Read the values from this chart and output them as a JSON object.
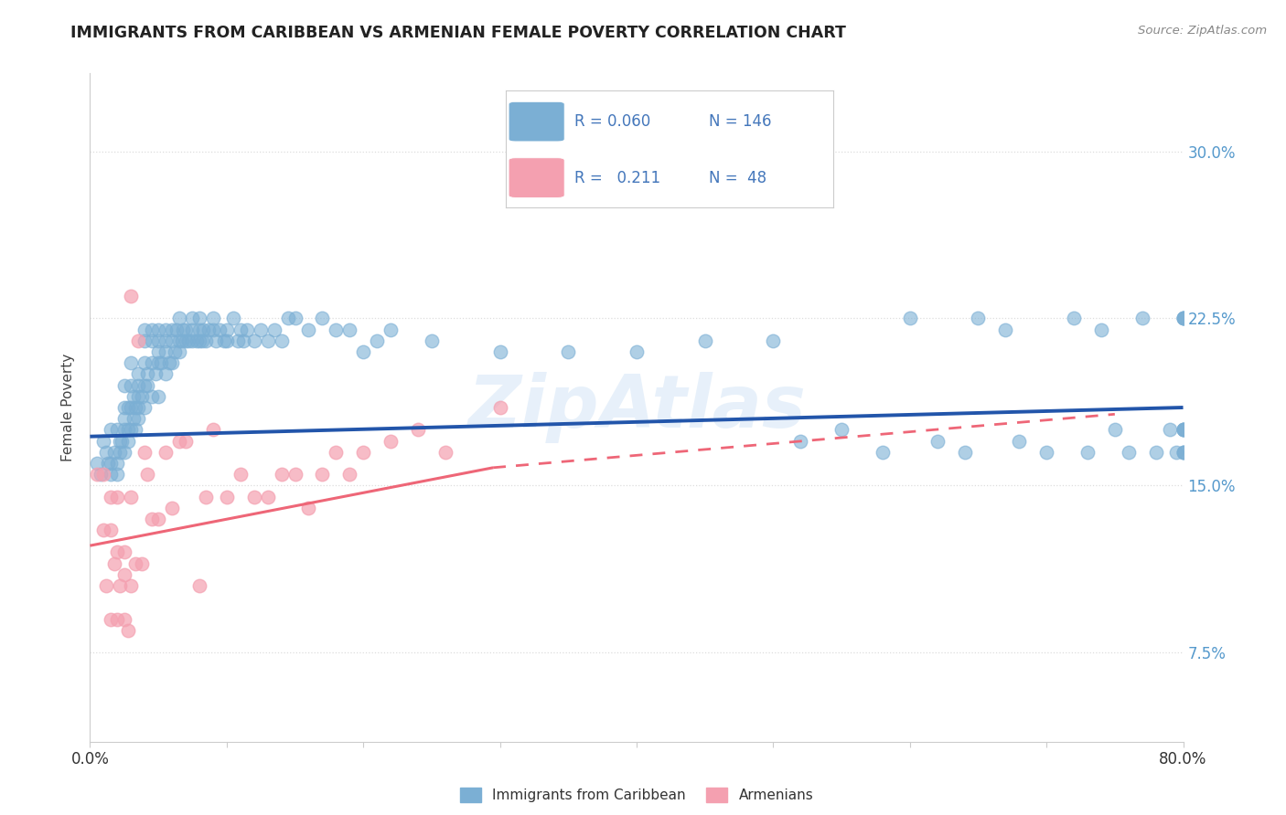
{
  "title": "IMMIGRANTS FROM CARIBBEAN VS ARMENIAN FEMALE POVERTY CORRELATION CHART",
  "source": "Source: ZipAtlas.com",
  "ylabel": "Female Poverty",
  "yticks": [
    0.075,
    0.15,
    0.225,
    0.3
  ],
  "ytick_labels": [
    "7.5%",
    "15.0%",
    "22.5%",
    "30.0%"
  ],
  "xlim": [
    0.0,
    0.8
  ],
  "ylim": [
    0.035,
    0.335
  ],
  "caribbean_R": 0.06,
  "caribbean_N": 146,
  "armenian_R": 0.211,
  "armenian_N": 48,
  "caribbean_color": "#7BAFD4",
  "armenian_color": "#F4A0B0",
  "caribbean_line_color": "#2255AA",
  "armenian_line_color": "#EE6677",
  "background_color": "#FFFFFF",
  "watermark": "ZipAtlas",
  "title_fontsize": 12.5,
  "axis_label_color": "#5599CC",
  "legend_text_color": "#4477BB",
  "grid_color": "#DDDDDD",
  "carib_line_x0": 0.0,
  "carib_line_x1": 0.8,
  "carib_line_y0": 0.172,
  "carib_line_y1": 0.185,
  "arm_line_x_solid_start": 0.0,
  "arm_line_x_solid_end": 0.295,
  "arm_line_x_dash_end": 0.75,
  "arm_line_y0": 0.123,
  "arm_line_y1_solid": 0.158,
  "arm_line_y1_dash": 0.182,
  "caribbean_x": [
    0.005,
    0.008,
    0.01,
    0.012,
    0.013,
    0.015,
    0.015,
    0.015,
    0.018,
    0.02,
    0.02,
    0.02,
    0.022,
    0.022,
    0.023,
    0.025,
    0.025,
    0.025,
    0.025,
    0.025,
    0.028,
    0.028,
    0.028,
    0.03,
    0.03,
    0.03,
    0.03,
    0.032,
    0.032,
    0.033,
    0.033,
    0.035,
    0.035,
    0.035,
    0.035,
    0.035,
    0.038,
    0.04,
    0.04,
    0.04,
    0.04,
    0.04,
    0.042,
    0.042,
    0.045,
    0.045,
    0.045,
    0.045,
    0.048,
    0.05,
    0.05,
    0.05,
    0.05,
    0.05,
    0.052,
    0.055,
    0.055,
    0.055,
    0.055,
    0.058,
    0.06,
    0.06,
    0.06,
    0.062,
    0.063,
    0.065,
    0.065,
    0.065,
    0.067,
    0.068,
    0.07,
    0.07,
    0.072,
    0.075,
    0.075,
    0.075,
    0.078,
    0.08,
    0.08,
    0.08,
    0.082,
    0.083,
    0.085,
    0.087,
    0.09,
    0.09,
    0.092,
    0.095,
    0.098,
    0.1,
    0.1,
    0.105,
    0.108,
    0.11,
    0.112,
    0.115,
    0.12,
    0.125,
    0.13,
    0.135,
    0.14,
    0.145,
    0.15,
    0.16,
    0.17,
    0.18,
    0.19,
    0.2,
    0.21,
    0.22,
    0.25,
    0.3,
    0.35,
    0.4,
    0.45,
    0.5,
    0.52,
    0.55,
    0.58,
    0.6,
    0.62,
    0.64,
    0.65,
    0.67,
    0.68,
    0.7,
    0.72,
    0.73,
    0.74,
    0.75,
    0.76,
    0.77,
    0.78,
    0.79,
    0.795,
    0.8,
    0.8,
    0.8,
    0.8,
    0.8,
    0.8,
    0.8,
    0.8,
    0.8,
    0.8,
    0.8
  ],
  "caribbean_y": [
    0.16,
    0.155,
    0.17,
    0.165,
    0.16,
    0.175,
    0.16,
    0.155,
    0.165,
    0.175,
    0.16,
    0.155,
    0.17,
    0.165,
    0.17,
    0.175,
    0.18,
    0.185,
    0.195,
    0.165,
    0.175,
    0.185,
    0.17,
    0.175,
    0.185,
    0.195,
    0.205,
    0.18,
    0.19,
    0.175,
    0.185,
    0.18,
    0.19,
    0.2,
    0.195,
    0.185,
    0.19,
    0.185,
    0.195,
    0.205,
    0.215,
    0.22,
    0.195,
    0.2,
    0.19,
    0.205,
    0.215,
    0.22,
    0.2,
    0.19,
    0.205,
    0.215,
    0.22,
    0.21,
    0.205,
    0.2,
    0.21,
    0.215,
    0.22,
    0.205,
    0.205,
    0.215,
    0.22,
    0.21,
    0.22,
    0.21,
    0.215,
    0.225,
    0.215,
    0.22,
    0.215,
    0.22,
    0.215,
    0.22,
    0.215,
    0.225,
    0.215,
    0.22,
    0.215,
    0.225,
    0.215,
    0.22,
    0.215,
    0.22,
    0.22,
    0.225,
    0.215,
    0.22,
    0.215,
    0.22,
    0.215,
    0.225,
    0.215,
    0.22,
    0.215,
    0.22,
    0.215,
    0.22,
    0.215,
    0.22,
    0.215,
    0.225,
    0.225,
    0.22,
    0.225,
    0.22,
    0.22,
    0.21,
    0.215,
    0.22,
    0.215,
    0.21,
    0.21,
    0.21,
    0.215,
    0.215,
    0.17,
    0.175,
    0.165,
    0.225,
    0.17,
    0.165,
    0.225,
    0.22,
    0.17,
    0.165,
    0.225,
    0.165,
    0.22,
    0.175,
    0.165,
    0.225,
    0.165,
    0.175,
    0.165,
    0.225,
    0.175,
    0.165,
    0.225,
    0.175,
    0.165,
    0.225,
    0.175,
    0.165,
    0.225,
    0.175
  ],
  "armenian_x": [
    0.005,
    0.01,
    0.01,
    0.012,
    0.015,
    0.015,
    0.015,
    0.018,
    0.02,
    0.02,
    0.02,
    0.022,
    0.025,
    0.025,
    0.025,
    0.028,
    0.03,
    0.03,
    0.03,
    0.033,
    0.035,
    0.038,
    0.04,
    0.042,
    0.045,
    0.05,
    0.055,
    0.06,
    0.065,
    0.07,
    0.08,
    0.085,
    0.09,
    0.1,
    0.11,
    0.12,
    0.13,
    0.14,
    0.15,
    0.16,
    0.17,
    0.18,
    0.19,
    0.2,
    0.22,
    0.24,
    0.26,
    0.3
  ],
  "armenian_y": [
    0.155,
    0.155,
    0.13,
    0.105,
    0.145,
    0.13,
    0.09,
    0.115,
    0.145,
    0.12,
    0.09,
    0.105,
    0.12,
    0.11,
    0.09,
    0.085,
    0.235,
    0.145,
    0.105,
    0.115,
    0.215,
    0.115,
    0.165,
    0.155,
    0.135,
    0.135,
    0.165,
    0.14,
    0.17,
    0.17,
    0.105,
    0.145,
    0.175,
    0.145,
    0.155,
    0.145,
    0.145,
    0.155,
    0.155,
    0.14,
    0.155,
    0.165,
    0.155,
    0.165,
    0.17,
    0.175,
    0.165,
    0.185
  ]
}
